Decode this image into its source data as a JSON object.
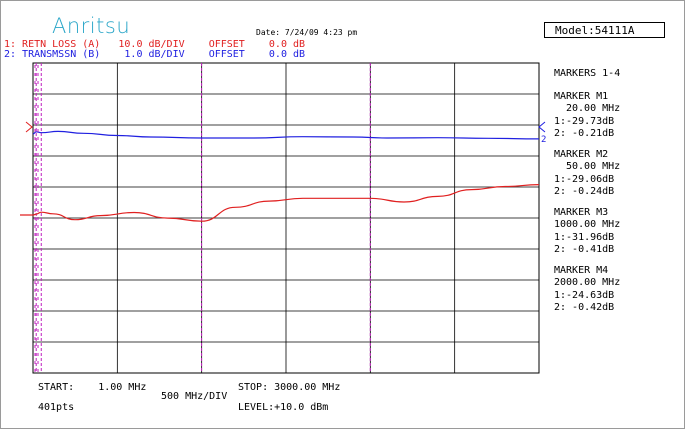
{
  "header": {
    "logo": "Anritsu",
    "date": "Date: 7/24/09 4:23 pm",
    "model": "Model:54111A"
  },
  "traces": [
    {
      "line": "1: RETN LOSS (A)   10.0 dB/DIV    OFFSET    0.0 dB",
      "color": "#e02020"
    },
    {
      "line": "2: TRANSMSSN (B)    1.0 dB/DIV    OFFSET    0.0 dB",
      "color": "#2020e0"
    }
  ],
  "markers_panel": {
    "title": "MARKERS 1-4",
    "markers": [
      {
        "label": "MARKER M1",
        "freq": "20.00 MHz",
        "t1": "1:-29.73dB",
        "t2": "2: -0.21dB",
        "freq_mhz": 20
      },
      {
        "label": "MARKER M2",
        "freq": "50.00 MHz",
        "t1": "1:-29.06dB",
        "t2": "2: -0.24dB",
        "freq_mhz": 50
      },
      {
        "label": "MARKER M3",
        "freq": "1000.00 MHz",
        "t1": "1:-31.96dB",
        "t2": "2: -0.41dB",
        "freq_mhz": 1000
      },
      {
        "label": "MARKER M4",
        "freq": "2000.00 MHz",
        "t1": "1:-24.63dB",
        "t2": "2: -0.42dB",
        "freq_mhz": 2000
      }
    ]
  },
  "footer": {
    "start": "START:    1.00 MHz",
    "points": "401pts",
    "div": "500 MHz/DIV",
    "stop": "STOP: 3000.00 MHz",
    "level": "LEVEL:+10.0 dBm"
  },
  "chart_data": {
    "type": "line",
    "x_unit": "MHz",
    "xlim": [
      1,
      3000
    ],
    "grid": true,
    "series": [
      {
        "name": "RETN LOSS (A)",
        "color": "#e02020",
        "x": [
          1,
          20,
          50,
          120,
          250,
          400,
          600,
          800,
          1000,
          1200,
          1400,
          1600,
          1800,
          2000,
          2200,
          2400,
          2600,
          2800,
          3000
        ],
        "y": [
          -30,
          -29.7,
          -29.1,
          -29.6,
          -31.5,
          -30.2,
          -29.2,
          -31.0,
          -32.0,
          -27.5,
          -25.5,
          -24.6,
          -24.6,
          -24.6,
          -25.8,
          -24.0,
          -21.8,
          -20.8,
          -20.2
        ]
      },
      {
        "name": "TRANSMSSN (B)",
        "color": "#2020e0",
        "x": [
          1,
          20,
          50,
          150,
          300,
          500,
          700,
          1000,
          1300,
          1600,
          1900,
          2100,
          2400,
          2700,
          3000
        ],
        "y": [
          -0.28,
          -0.21,
          -0.24,
          -0.2,
          -0.26,
          -0.33,
          -0.38,
          -0.41,
          -0.41,
          -0.37,
          -0.38,
          -0.41,
          -0.4,
          -0.42,
          -0.44
        ]
      }
    ]
  }
}
